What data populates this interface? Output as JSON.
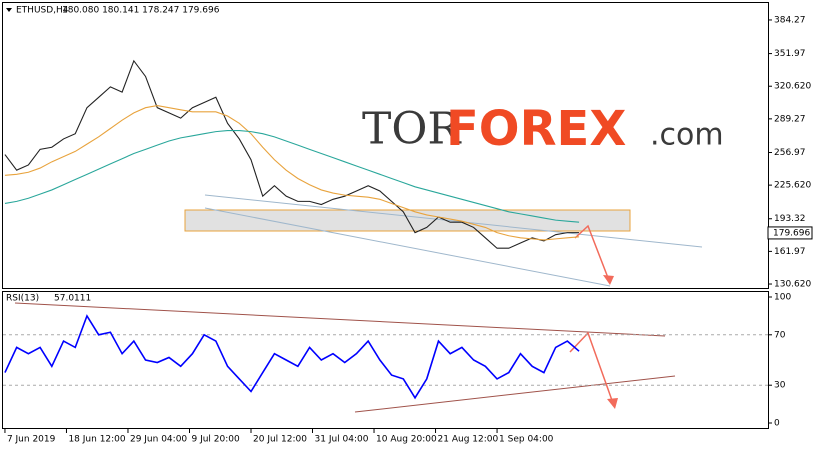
{
  "chart_data": [
    {
      "type": "line",
      "title": "ETHUSD,H4",
      "quote": "180.080 180.141 178.247 179.696",
      "logo": {
        "left": "TOR",
        "main": "FOREX",
        "suffix": ".com"
      },
      "xlim": [
        -8,
        3126
      ],
      "ylim": [
        126.8,
        399.6
      ],
      "yticks": [
        {
          "value": 130.62,
          "label": "130.620"
        },
        161.97,
        193.32,
        {
          "value": 225.62,
          "label": "225.620"
        },
        256.97,
        289.27,
        {
          "value": 320.62,
          "label": "320.620"
        },
        351.97,
        384.27
      ],
      "last_price": 179.696,
      "x": [
        0,
        48,
        96,
        144,
        192,
        240,
        288,
        336,
        384,
        432,
        480,
        528,
        576,
        624,
        672,
        720,
        768,
        816,
        864,
        912,
        960,
        1008,
        1056,
        1104,
        1152,
        1200,
        1248,
        1296,
        1344,
        1392,
        1440,
        1488,
        1536,
        1584,
        1632,
        1680,
        1728,
        1776,
        1824,
        1872,
        1920,
        1968,
        2016,
        2064,
        2112,
        2160,
        2208,
        2256,
        2304,
        2352
      ],
      "series": [
        {
          "color": "#222222",
          "values": [
            255,
            240,
            245,
            260,
            262,
            270,
            275,
            300,
            310,
            320,
            315,
            345,
            330,
            300,
            295,
            290,
            300,
            305,
            310,
            285,
            270,
            250,
            215,
            225,
            215,
            210,
            210,
            207,
            212,
            215,
            220,
            225,
            220,
            210,
            200,
            180,
            185,
            195,
            190,
            190,
            185,
            175,
            165,
            165,
            170,
            175,
            172,
            178,
            180,
            180
          ]
        },
        {
          "color": "#e8a33d",
          "values": [
            235,
            236,
            238,
            242,
            248,
            253,
            258,
            265,
            272,
            280,
            288,
            295,
            300,
            302,
            300,
            298,
            296,
            296,
            296,
            292,
            285,
            275,
            262,
            250,
            240,
            232,
            226,
            221,
            218,
            216,
            215,
            214,
            212,
            208,
            204,
            200,
            197,
            195,
            193,
            191,
            188,
            185,
            180,
            177,
            175,
            174,
            173,
            174,
            175,
            176
          ]
        },
        {
          "color": "#2aa79b",
          "values": [
            208,
            210,
            213,
            217,
            221,
            226,
            231,
            236,
            241,
            246,
            251,
            256,
            260,
            264,
            268,
            271,
            273,
            275,
            277,
            278,
            278,
            277,
            275,
            272,
            268,
            264,
            260,
            256,
            252,
            248,
            244,
            240,
            236,
            232,
            228,
            224,
            221,
            218,
            215,
            212,
            209,
            206,
            203,
            200,
            198,
            196,
            194,
            192,
            191,
            190
          ]
        }
      ]
    },
    {
      "type": "line",
      "title": "RSI(13)",
      "last_value": 57.0111,
      "xlim": [
        -8,
        3126
      ],
      "xticks": [
        {
          "value": 0,
          "label": "7 Jun 2019"
        },
        {
          "value": 252,
          "label": "18 Jun 12:00"
        },
        {
          "value": 504,
          "label": "29 Jun 04:00"
        },
        {
          "value": 756,
          "label": "9 Jul 20:00"
        },
        {
          "value": 1008,
          "label": "20 Jul 12:00"
        },
        {
          "value": 1260,
          "label": "31 Jul 04:00"
        },
        {
          "value": 1512,
          "label": "10 Aug 20:00"
        },
        {
          "value": 1764,
          "label": "21 Aug 12:00"
        },
        {
          "value": 2016,
          "label": "1 Sep 04:00"
        }
      ],
      "ylim": [
        0,
        100
      ],
      "yticks": [
        0,
        30,
        70,
        100
      ],
      "x": [
        0,
        48,
        96,
        144,
        192,
        240,
        288,
        336,
        384,
        432,
        480,
        528,
        576,
        624,
        672,
        720,
        768,
        816,
        864,
        912,
        960,
        1008,
        1056,
        1104,
        1152,
        1200,
        1248,
        1296,
        1344,
        1392,
        1440,
        1488,
        1536,
        1584,
        1632,
        1680,
        1728,
        1776,
        1824,
        1872,
        1920,
        1968,
        2016,
        2064,
        2112,
        2160,
        2208,
        2256,
        2304,
        2352
      ],
      "series": [
        {
          "color": "#0000ff",
          "values": [
            40,
            60,
            55,
            60,
            45,
            65,
            60,
            85,
            70,
            72,
            55,
            65,
            50,
            48,
            52,
            45,
            55,
            70,
            65,
            45,
            35,
            25,
            40,
            55,
            50,
            45,
            60,
            50,
            55,
            48,
            55,
            65,
            50,
            38,
            35,
            20,
            35,
            65,
            55,
            60,
            50,
            45,
            35,
            40,
            55,
            45,
            40,
            60,
            65,
            57
          ]
        }
      ]
    }
  ]
}
